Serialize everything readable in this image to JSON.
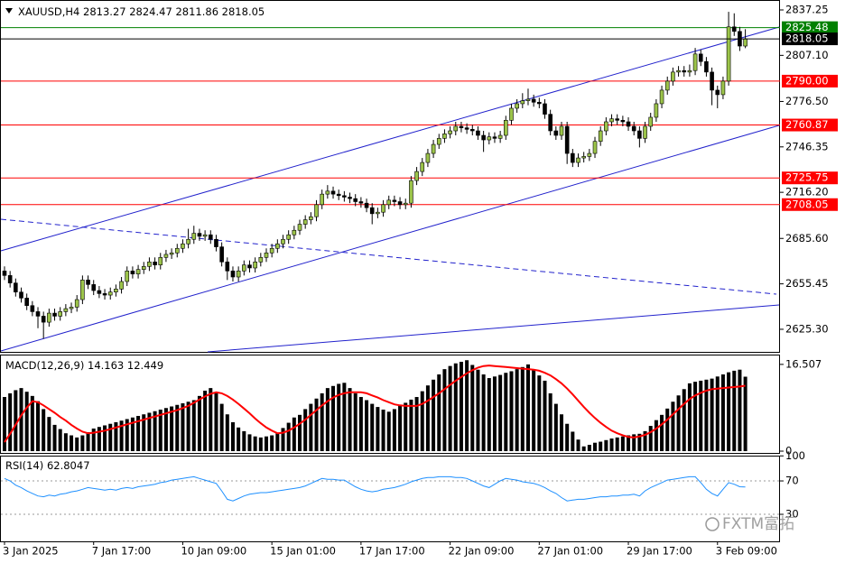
{
  "chart_data": [
    {
      "type": "candlestick",
      "symbol": "XAUUSD,H4",
      "categories": [
        "3 Jan 2025",
        null,
        null,
        null,
        null,
        null,
        null,
        null,
        null,
        null,
        null,
        null,
        null,
        null,
        null,
        null,
        "7 Jan 17:00",
        null,
        null,
        null,
        null,
        null,
        null,
        null,
        null,
        null,
        null,
        null,
        null,
        null,
        null,
        null,
        "10 Jan 09:00",
        null,
        null,
        null,
        null,
        null,
        null,
        null,
        null,
        null,
        null,
        null,
        null,
        null,
        null,
        null,
        "15 Jan 01:00",
        null,
        null,
        null,
        null,
        null,
        null,
        null,
        null,
        null,
        null,
        null,
        null,
        null,
        null,
        null,
        "17 Jan 17:00",
        null,
        null,
        null,
        null,
        null,
        null,
        null,
        null,
        null,
        null,
        null,
        null,
        null,
        null,
        null,
        "22 Jan 09:00",
        null,
        null,
        null,
        null,
        null,
        null,
        null,
        null,
        null,
        null,
        null,
        null,
        null,
        null,
        null,
        "27 Jan 01:00",
        null,
        null,
        null,
        null,
        null,
        null,
        null,
        null,
        null,
        null,
        null,
        null,
        null,
        null,
        null,
        "29 Jan 17:00",
        null,
        null,
        null,
        null,
        null,
        null,
        null,
        null,
        null,
        null,
        null,
        null,
        null,
        null,
        null,
        "3 Feb 09:00",
        null,
        null,
        null,
        null,
        null
      ],
      "open": [
        2664,
        2661,
        2656,
        2650,
        2646,
        2641,
        2637,
        2634,
        2630,
        2636,
        2634,
        2637,
        2639,
        2640,
        2645,
        2658,
        2655,
        2651,
        2649,
        2648,
        2650,
        2652,
        2657,
        2664,
        2662,
        2665,
        2667,
        2670,
        2668,
        2673,
        2675,
        2676,
        2679,
        2682,
        2685,
        2689,
        2687,
        2688,
        2685,
        2680,
        2670,
        2664,
        2660,
        2664,
        2668,
        2666,
        2670,
        2673,
        2676,
        2679,
        2682,
        2685,
        2688,
        2691,
        2695,
        2698,
        2700,
        2708,
        2715,
        2717,
        2715,
        2714,
        2713,
        2712,
        2710,
        2709,
        2706,
        2702,
        2703,
        2708,
        2711,
        2710,
        2708,
        2709,
        2724,
        2730,
        2736,
        2742,
        2748,
        2752,
        2755,
        2757,
        2760,
        2759,
        2758,
        2757,
        2754,
        2751,
        2753,
        2752,
        2754,
        2764,
        2772,
        2775,
        2777,
        2778,
        2776,
        2775,
        2768,
        2757,
        2754,
        2760,
        2742,
        2736,
        2739,
        2740,
        2742,
        2750,
        2757,
        2763,
        2765,
        2764,
        2763,
        2760,
        2757,
        2752,
        2760,
        2766,
        2775,
        2784,
        2790,
        2796,
        2797,
        2796,
        2797,
        2808,
        2803,
        2796,
        2784,
        2781,
        2790,
        2826,
        2823,
        2813.27
      ],
      "high": [
        2667,
        2664,
        2659,
        2653,
        2649,
        2644,
        2640,
        2637,
        2639,
        2639,
        2640,
        2642,
        2643,
        2648,
        2661,
        2661,
        2658,
        2654,
        2652,
        2653,
        2655,
        2660,
        2667,
        2667,
        2668,
        2670,
        2673,
        2673,
        2676,
        2678,
        2679,
        2682,
        2685,
        2692,
        2694,
        2692,
        2691,
        2691,
        2688,
        2683,
        2673,
        2667,
        2667,
        2671,
        2671,
        2673,
        2676,
        2679,
        2682,
        2685,
        2688,
        2691,
        2694,
        2698,
        2701,
        2703,
        2711,
        2718,
        2721,
        2720,
        2718,
        2717,
        2716,
        2715,
        2713,
        2712,
        2709,
        2706,
        2711,
        2714,
        2714,
        2713,
        2712,
        2727,
        2733,
        2739,
        2745,
        2751,
        2755,
        2758,
        2760,
        2763,
        2763,
        2762,
        2761,
        2760,
        2757,
        2756,
        2756,
        2757,
        2767,
        2775,
        2778,
        2782,
        2785,
        2781,
        2779,
        2778,
        2771,
        2760,
        2763,
        2763,
        2745,
        2742,
        2743,
        2745,
        2753,
        2760,
        2766,
        2768,
        2768,
        2767,
        2766,
        2763,
        2760,
        2763,
        2769,
        2778,
        2787,
        2793,
        2799,
        2800,
        2800,
        2801,
        2812,
        2811,
        2806,
        2799,
        2787,
        2793,
        2836,
        2835,
        2826,
        2824.47
      ],
      "low": [
        2658,
        2653,
        2647,
        2643,
        2638,
        2634,
        2626,
        2619,
        2627,
        2631,
        2631,
        2634,
        2636,
        2637,
        2642,
        2652,
        2648,
        2646,
        2645,
        2645,
        2647,
        2649,
        2654,
        2659,
        2659,
        2662,
        2664,
        2665,
        2665,
        2670,
        2672,
        2673,
        2676,
        2679,
        2682,
        2684,
        2684,
        2682,
        2677,
        2667,
        2658,
        2657,
        2657,
        2661,
        2663,
        2663,
        2667,
        2670,
        2673,
        2676,
        2679,
        2682,
        2685,
        2688,
        2692,
        2695,
        2697,
        2705,
        2712,
        2712,
        2711,
        2710,
        2709,
        2707,
        2706,
        2703,
        2695,
        2699,
        2700,
        2705,
        2707,
        2705,
        2705,
        2706,
        2721,
        2727,
        2733,
        2739,
        2745,
        2749,
        2752,
        2754,
        2756,
        2755,
        2754,
        2751,
        2743,
        2748,
        2749,
        2749,
        2751,
        2761,
        2769,
        2772,
        2774,
        2773,
        2772,
        2765,
        2754,
        2751,
        2751,
        2735,
        2733,
        2733,
        2736,
        2737,
        2739,
        2747,
        2754,
        2760,
        2761,
        2760,
        2757,
        2754,
        2746,
        2749,
        2757,
        2763,
        2772,
        2781,
        2787,
        2793,
        2793,
        2793,
        2794,
        2800,
        2793,
        2774,
        2772,
        2778,
        2787,
        2820,
        2810,
        2811.86
      ],
      "close": [
        2661,
        2656,
        2650,
        2646,
        2641,
        2637,
        2634,
        2630,
        2636,
        2634,
        2637,
        2639,
        2640,
        2645,
        2658,
        2655,
        2651,
        2649,
        2648,
        2650,
        2652,
        2657,
        2664,
        2662,
        2665,
        2667,
        2670,
        2668,
        2673,
        2675,
        2676,
        2679,
        2682,
        2685,
        2689,
        2687,
        2688,
        2685,
        2680,
        2670,
        2664,
        2660,
        2664,
        2668,
        2666,
        2670,
        2673,
        2676,
        2679,
        2682,
        2685,
        2688,
        2691,
        2695,
        2698,
        2700,
        2708,
        2715,
        2717,
        2715,
        2714,
        2713,
        2712,
        2710,
        2709,
        2706,
        2702,
        2703,
        2708,
        2711,
        2710,
        2708,
        2709,
        2724,
        2730,
        2736,
        2742,
        2748,
        2752,
        2755,
        2757,
        2760,
        2759,
        2758,
        2757,
        2754,
        2751,
        2753,
        2752,
        2754,
        2764,
        2772,
        2775,
        2777,
        2778,
        2776,
        2775,
        2768,
        2757,
        2754,
        2760,
        2742,
        2736,
        2739,
        2740,
        2742,
        2750,
        2757,
        2763,
        2765,
        2764,
        2763,
        2760,
        2757,
        2752,
        2760,
        2766,
        2775,
        2784,
        2790,
        2796,
        2797,
        2796,
        2797,
        2808,
        2803,
        2796,
        2784,
        2781,
        2790,
        2826,
        2823,
        2813.27,
        2818.05
      ],
      "up_color": "#9cc44a",
      "down_color": "#000000",
      "last_price_color": "#000000",
      "ylim": [
        2610.3,
        2842.04
      ],
      "yticks": [
        2837.25,
        {
          "value": 2807.1,
          "label": "2807.10"
        },
        {
          "value": 2776.5,
          "label": "2776.50"
        },
        2746.35,
        {
          "value": 2716.2,
          "label": "2716.20"
        },
        {
          "value": 2685.6,
          "label": "2685.60"
        },
        2655.45,
        {
          "value": 2625.3,
          "label": "2625.30"
        }
      ],
      "levels": [
        {
          "value": 2825.48,
          "color": "#008000"
        },
        {
          "value": 2790,
          "label": "2790.00",
          "color": "#ff0000"
        },
        {
          "value": 2760.87,
          "color": "#ff0000"
        },
        {
          "value": 2725.75,
          "color": "#ff0000"
        },
        {
          "value": 2708.05,
          "color": "#ff0000"
        }
      ],
      "watermark": "FXTM富拓"
    },
    {
      "type": "macd",
      "title": "MACD(12,26,9)",
      "values": [
        10.3,
        11,
        11.6,
        12,
        11.3,
        10.5,
        9.5,
        8,
        6.5,
        5,
        4.2,
        3.4,
        3,
        2.6,
        3,
        3.6,
        4.3,
        4.6,
        4.9,
        5.2,
        5.5,
        5.8,
        6.1,
        6.4,
        6.7,
        7,
        7.3,
        7.6,
        7.9,
        8.2,
        8.5,
        8.8,
        9.1,
        9.4,
        9.7,
        10.5,
        11.5,
        12,
        11,
        9,
        7,
        5.5,
        4.5,
        3.8,
        3.2,
        2.8,
        2.6,
        2.8,
        3,
        3.4,
        4.4,
        5.4,
        6.4,
        6.9,
        8,
        9,
        10,
        11,
        12,
        12.4,
        12.8,
        13,
        12,
        11,
        10.3,
        9.7,
        9,
        8.4,
        7.9,
        7.5,
        8,
        8.6,
        9.2,
        9.8,
        10.3,
        11.4,
        12.5,
        13.6,
        14.6,
        15.6,
        16.2,
        16.7,
        17,
        17.3,
        16.4,
        15.5,
        14.6,
        13.9,
        14.2,
        14.5,
        14.9,
        15.2,
        15.6,
        16,
        16.5,
        15.5,
        14.4,
        13.4,
        11,
        9,
        7,
        5.2,
        3.7,
        2.2,
        0.9,
        1.2,
        1.6,
        1.8,
        2.1,
        2.4,
        2.6,
        2.8,
        3,
        3.2,
        3.3,
        3.8,
        4.8,
        5.9,
        6.9,
        8.1,
        9.4,
        10.6,
        11.8,
        12.9,
        13.2,
        13.4,
        13.6,
        13.8,
        14.2,
        14.6,
        15,
        15.3,
        15.5,
        14.163
      ],
      "signal": [
        1.7,
        3.3,
        5,
        6.8,
        8.3,
        9.5,
        9.3,
        8.7,
        8,
        7.3,
        6.5,
        5.8,
        5,
        4.3,
        3.7,
        3.4,
        3.5,
        3.7,
        3.9,
        4.2,
        4.5,
        4.8,
        5.1,
        5.4,
        5.7,
        6,
        6.3,
        6.6,
        6.9,
        7.2,
        7.5,
        7.8,
        8.2,
        8.6,
        9.2,
        9.8,
        10.4,
        10.9,
        11.2,
        11,
        10.5,
        9.8,
        9,
        8.1,
        7.2,
        6.2,
        5.3,
        4.5,
        3.9,
        3.4,
        3.5,
        3.9,
        4.5,
        5.2,
        6,
        6.9,
        7.8,
        8.7,
        9.5,
        10.2,
        10.7,
        11,
        11.2,
        11.2,
        11.2,
        11,
        10.6,
        10.2,
        9.7,
        9.3,
        8.9,
        8.7,
        8.6,
        8.6,
        8.6,
        9,
        9.6,
        10.3,
        11,
        11.8,
        12.6,
        13.4,
        14.1,
        14.8,
        15.4,
        15.9,
        16.2,
        16.3,
        16.2,
        16.1,
        16,
        15.9,
        15.8,
        15.7,
        15.6,
        15.5,
        15.3,
        14.9,
        14.4,
        13.7,
        12.9,
        11.9,
        10.8,
        9.6,
        8.4,
        7.3,
        6.3,
        5.4,
        4.6,
        3.9,
        3.4,
        3,
        2.7,
        2.6,
        2.8,
        3.1,
        3.6,
        4.3,
        5.1,
        6,
        7,
        8,
        9,
        9.9,
        10.6,
        11.1,
        11.5,
        11.8,
        11.9,
        12,
        12.1,
        12.2,
        12.3,
        12.449
      ],
      "color": "#000000",
      "signal_color": "#ff0000",
      "ylim": [
        -0.34,
        18.2
      ],
      "yticks": [
        16.507,
        0
      ]
    },
    {
      "type": "line",
      "title": "RSI(14)",
      "values": [
        73,
        70,
        65,
        62,
        58,
        55,
        52,
        51,
        53,
        52,
        54,
        55,
        57,
        58,
        60,
        62,
        61,
        60,
        59,
        60,
        59,
        61,
        62,
        61,
        63,
        64,
        65,
        66,
        68,
        69,
        71,
        72,
        73,
        74,
        75,
        73,
        71,
        69,
        67,
        58,
        48,
        46,
        49,
        52,
        54,
        55,
        56,
        56,
        57,
        58,
        59,
        60,
        61,
        62,
        64,
        67,
        70,
        73,
        72,
        72,
        71,
        71,
        67,
        63,
        60,
        58,
        57,
        58,
        60,
        61,
        62,
        64,
        66,
        69,
        71,
        73,
        74,
        74,
        75,
        75,
        75,
        74,
        74,
        73,
        70,
        67,
        64,
        62,
        66,
        70,
        73,
        72,
        71,
        69,
        68,
        67,
        65,
        62,
        58,
        55,
        50,
        46,
        47,
        48,
        48,
        49,
        50,
        51,
        51,
        52,
        52,
        53,
        53,
        54,
        52,
        58,
        62,
        65,
        68,
        71,
        72,
        73,
        74,
        75,
        75,
        68,
        60,
        55,
        52,
        60,
        68,
        66,
        63,
        62.8047
      ],
      "color": "#1e90ff",
      "ylim": [
        -2.4,
        100.3
      ],
      "yticks": [
        100,
        70,
        30
      ],
      "levels": [
        70,
        30
      ]
    }
  ]
}
